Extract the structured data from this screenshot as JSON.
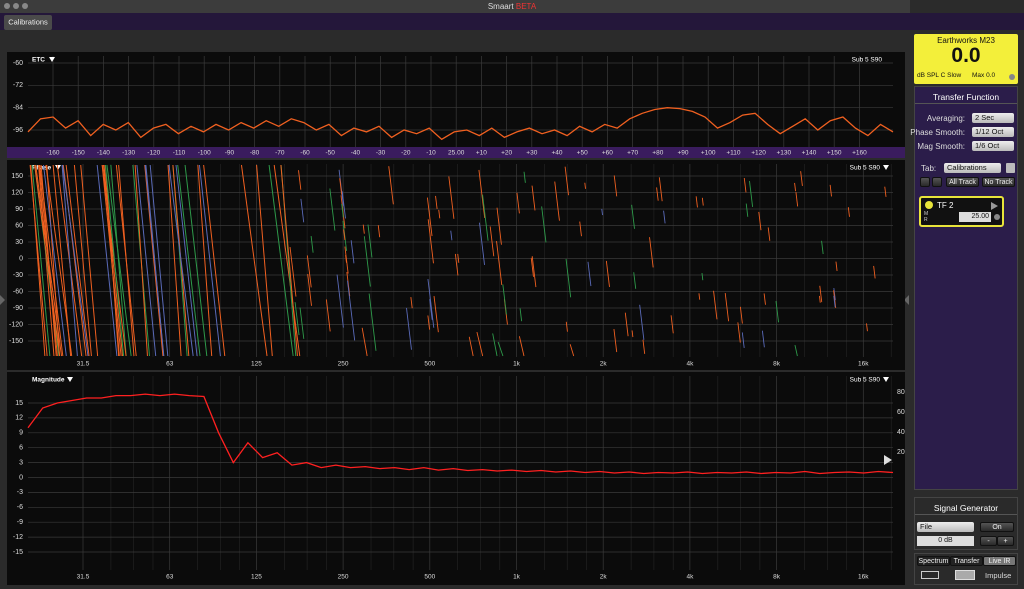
{
  "window": {
    "title": "Smaart",
    "badge": "BETA"
  },
  "tabs": [
    "Calibrations"
  ],
  "etc": {
    "label": "ETC",
    "measurement": "Sub 5 S90",
    "yticks": [
      "-60",
      "-72",
      "-84",
      "-96"
    ],
    "xticks": [
      "-160",
      "-150",
      "-140",
      "-130",
      "-120",
      "-110",
      "-100",
      "-90",
      "-80",
      "-70",
      "-60",
      "-50",
      "-40",
      "-30",
      "-20",
      "-10",
      "25.00",
      "+10",
      "+20",
      "+30",
      "+40",
      "+50",
      "+60",
      "+70",
      "+80",
      "+90",
      "+100",
      "+110",
      "+120",
      "+130",
      "+140",
      "+150",
      "+160"
    ],
    "trace": [
      -97,
      -90,
      -89,
      -95,
      -91,
      -99,
      -93,
      -96,
      -92,
      -100,
      -95,
      -93,
      -98,
      -94,
      -97,
      -93,
      -96,
      -92,
      -95,
      -91,
      -94,
      -90,
      -92,
      -96,
      -93,
      -99,
      -95,
      -97,
      -94,
      -100,
      -96,
      -98,
      -95,
      -101,
      -97,
      -96,
      -99,
      -95,
      -100,
      -97,
      -95,
      -98,
      -96,
      -99,
      -94,
      -97,
      -93,
      -95,
      -90,
      -87,
      -85,
      -84,
      -84.5,
      -86,
      -89,
      -95,
      -92,
      -88,
      -87,
      -93,
      -98,
      -94,
      -90,
      -96,
      -91,
      -89,
      -95,
      -99,
      -93,
      -97
    ]
  },
  "phase": {
    "label": "Phase",
    "measurement": "Sub 5 S90",
    "yticks": [
      "150",
      "120",
      "90",
      "60",
      "30",
      "0",
      "-30",
      "-60",
      "-90",
      "-120",
      "-150"
    ],
    "xticks": [
      "31.5",
      "63",
      "125",
      "250",
      "500",
      "1k",
      "2k",
      "4k",
      "8k",
      "16k"
    ]
  },
  "magnitude": {
    "label": "Magnitude",
    "measurement": "Sub 5 S90",
    "yticks": [
      "15",
      "12",
      "9",
      "6",
      "3",
      "0",
      "-3",
      "-6",
      "-9",
      "-12",
      "-15"
    ],
    "y2ticks": [
      "80",
      "60",
      "40",
      "20"
    ],
    "xticks": [
      "31.5",
      "63",
      "125",
      "250",
      "500",
      "1k",
      "2k",
      "4k",
      "8k",
      "16k"
    ],
    "trace": [
      10,
      14,
      15,
      15.5,
      16,
      16,
      16.5,
      16.5,
      16.8,
      16.5,
      16.8,
      16.5,
      16.3,
      9,
      3,
      7,
      4,
      5,
      2.5,
      3,
      2,
      2.5,
      2,
      2.2,
      1.8,
      2,
      1.6,
      2,
      1.5,
      1.8,
      1.4,
      1.6,
      1.3,
      1.5,
      1.2,
      1.4,
      1.1,
      1.3,
      1,
      1.2,
      0.9,
      1.1,
      0.8,
      1,
      0.9,
      1.1,
      0.8,
      1,
      0.9,
      1.1,
      0.8,
      1,
      0.9,
      1.2,
      0.8,
      1,
      1.1,
      0.9,
      1.2,
      1
    ]
  },
  "meter": {
    "device": "Earthworks M23",
    "value": "0.0",
    "mode": "dB SPL C Slow",
    "max": "Max 0.0"
  },
  "transfer_function": {
    "title": "Transfer Function",
    "settings": [
      {
        "label": "Averaging:",
        "value": "2 Sec"
      },
      {
        "label": "Phase Smooth:",
        "value": "1/12 Oct"
      },
      {
        "label": "Mag Smooth:",
        "value": "1/6 Oct"
      }
    ],
    "tab_label": "Tab:",
    "tab_value": "Calibrations",
    "track_buttons": [
      "All Track",
      "No Track"
    ],
    "measurement": {
      "name": "TF 2",
      "m": "M",
      "r": "R",
      "delay": "25.00"
    }
  },
  "signal_generator": {
    "title": "Signal Generator",
    "source": "File",
    "state": "On",
    "level": "0 dB",
    "minus": "-",
    "plus": "+"
  },
  "modes": [
    "Spectrum",
    "Transfer",
    "Live IR"
  ],
  "impulse": "Impulse"
}
